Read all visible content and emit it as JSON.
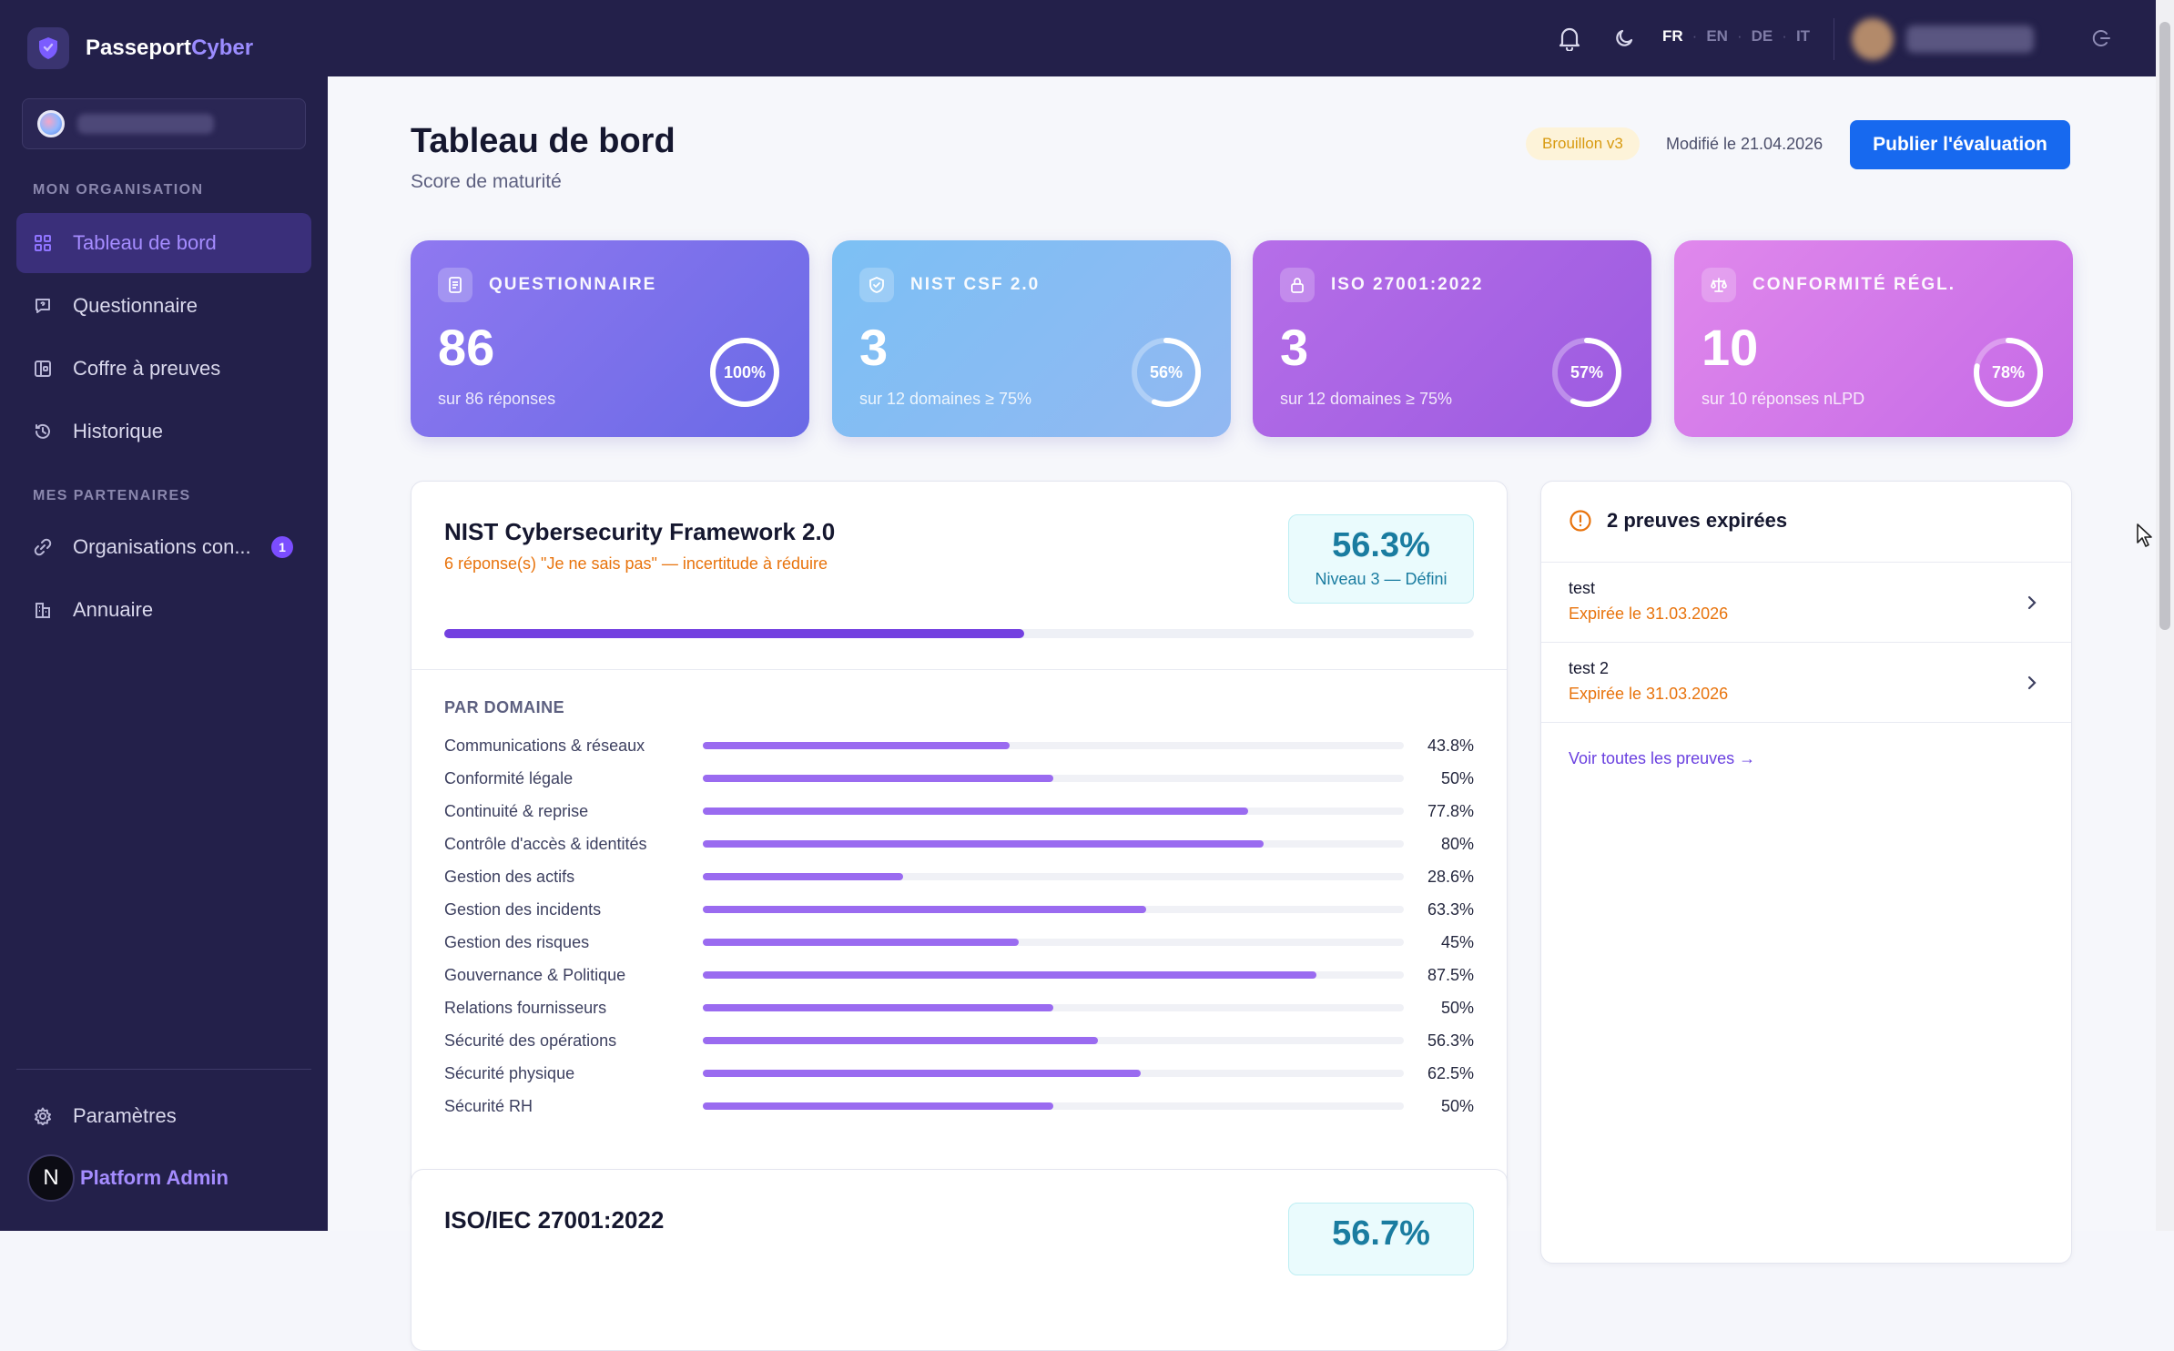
{
  "brand": {
    "name_part1": "Passeport",
    "name_part2": "Cyber"
  },
  "sidebar": {
    "section_org": "MON ORGANISATION",
    "section_partners": "MES PARTENAIRES",
    "items": [
      {
        "label": "Tableau de bord",
        "icon": "dashboard-icon"
      },
      {
        "label": "Questionnaire",
        "icon": "questionnaire-icon"
      },
      {
        "label": "Coffre à preuves",
        "icon": "vault-icon"
      },
      {
        "label": "Historique",
        "icon": "history-icon"
      },
      {
        "label": "Organisations con...",
        "icon": "link-icon",
        "badge": "1"
      },
      {
        "label": "Annuaire",
        "icon": "directory-icon"
      }
    ],
    "settings_label": "Paramètres",
    "admin_initial": "N",
    "admin_name": "Platform Admin"
  },
  "topbar": {
    "languages": [
      "FR",
      "EN",
      "DE",
      "IT"
    ],
    "current_language": "FR"
  },
  "header": {
    "title": "Tableau de bord",
    "subtitle": "Score de maturité",
    "draft_badge": "Brouillon v3",
    "modified": "Modifié le 21.04.2026",
    "publish_label": "Publier l'évaluation"
  },
  "stats": [
    {
      "label": "QUESTIONNAIRE",
      "value": "86",
      "sub": "sur 86 réponses",
      "percent": 100,
      "percent_label": "100%",
      "icon": "document-icon"
    },
    {
      "label": "NIST CSF 2.0",
      "value": "3",
      "sub": "sur 12 domaines ≥ 75%",
      "percent": 56,
      "percent_label": "56%",
      "icon": "shield-icon"
    },
    {
      "label": "ISO 27001:2022",
      "value": "3",
      "sub": "sur 12 domaines ≥ 75%",
      "percent": 57,
      "percent_label": "57%",
      "icon": "lock-icon"
    },
    {
      "label": "CONFORMITÉ RÉGL.",
      "value": "10",
      "sub": "sur 10 réponses nLPD",
      "percent": 78,
      "percent_label": "78%",
      "icon": "scale-icon"
    }
  ],
  "nist": {
    "title": "NIST Cybersecurity Framework 2.0",
    "warning": "6 réponse(s) \"Je ne sais pas\" — incertitude à réduire",
    "score": "56.3%",
    "score_value": 56.3,
    "level": "Niveau 3 — Défini",
    "domain_heading": "PAR DOMAINE",
    "domains": [
      {
        "name": "Communications & réseaux",
        "value": 43.8,
        "label": "43.8%"
      },
      {
        "name": "Conformité légale",
        "value": 50,
        "label": "50%"
      },
      {
        "name": "Continuité & reprise",
        "value": 77.8,
        "label": "77.8%"
      },
      {
        "name": "Contrôle d'accès & identités",
        "value": 80,
        "label": "80%"
      },
      {
        "name": "Gestion des actifs",
        "value": 28.6,
        "label": "28.6%"
      },
      {
        "name": "Gestion des incidents",
        "value": 63.3,
        "label": "63.3%"
      },
      {
        "name": "Gestion des risques",
        "value": 45,
        "label": "45%"
      },
      {
        "name": "Gouvernance & Politique",
        "value": 87.5,
        "label": "87.5%"
      },
      {
        "name": "Relations fournisseurs",
        "value": 50,
        "label": "50%"
      },
      {
        "name": "Sécurité des opérations",
        "value": 56.3,
        "label": "56.3%"
      },
      {
        "name": "Sécurité physique",
        "value": 62.5,
        "label": "62.5%"
      },
      {
        "name": "Sécurité RH",
        "value": 50,
        "label": "50%"
      }
    ]
  },
  "iso": {
    "title": "ISO/IEC 27001:2022",
    "score": "56.7%"
  },
  "expired": {
    "title": "2 preuves expirées",
    "items": [
      {
        "name": "test",
        "date": "Expirée le 31.03.2026"
      },
      {
        "name": "test 2",
        "date": "Expirée le 31.03.2026"
      }
    ],
    "see_all": "Voir toutes les preuves →"
  },
  "colors": {
    "accent": "#7340e0",
    "primary_button": "#1769ef",
    "warning": "#e8730c",
    "sidebar_bg": "#23204a"
  }
}
